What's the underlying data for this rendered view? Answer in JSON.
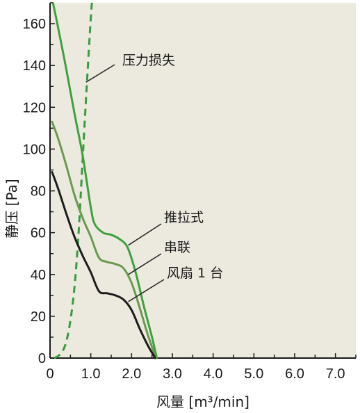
{
  "chart_data": {
    "type": "line",
    "xlabel": "风量 [m³/min]",
    "ylabel": "静压 [Pa]",
    "xlim": [
      0,
      7.5
    ],
    "ylim": [
      0,
      170
    ],
    "x_ticks": [
      "0",
      "1.0",
      "2.0",
      "3.0",
      "4.0",
      "5.0",
      "6.0",
      "7.0"
    ],
    "x_tick_values": [
      0,
      1,
      2,
      3,
      4,
      5,
      6,
      7
    ],
    "y_ticks": [
      "0",
      "20",
      "40",
      "60",
      "80",
      "100",
      "120",
      "140",
      "160"
    ],
    "y_tick_values": [
      0,
      20,
      40,
      60,
      80,
      100,
      120,
      140,
      160
    ],
    "plot_background": "#ece9df",
    "grid": false,
    "series": [
      {
        "name": "压力损失",
        "color": "#3a9a3e",
        "style": "dashed",
        "x": [
          0.1,
          0.2,
          0.3,
          0.4,
          0.5,
          0.6,
          0.7,
          0.8,
          0.9,
          1.0,
          1.05
        ],
        "y": [
          0,
          1,
          3,
          8,
          18,
          34,
          60,
          95,
          130,
          163,
          175
        ]
      },
      {
        "name": "推拉式",
        "color": "#3fa03f",
        "style": "solid",
        "x": [
          0.05,
          0.2,
          0.4,
          0.6,
          0.8,
          1.0,
          1.1,
          1.3,
          1.5,
          1.7,
          1.9,
          2.1,
          2.3,
          2.5,
          2.62
        ],
        "y": [
          172,
          158,
          138,
          117,
          97,
          72,
          64,
          60,
          59,
          57,
          53,
          41,
          25,
          10,
          0
        ]
      },
      {
        "name": "串联",
        "color": "#6a9a4e",
        "style": "solid",
        "x": [
          0.05,
          0.2,
          0.4,
          0.6,
          0.8,
          1.0,
          1.2,
          1.4,
          1.6,
          1.8,
          2.0,
          2.2,
          2.4,
          2.6
        ],
        "y": [
          113,
          105,
          92,
          78,
          67,
          58,
          48,
          46,
          45,
          43,
          36,
          24,
          11,
          0
        ]
      },
      {
        "name": "风扇 1 台",
        "color": "#1c1c1c",
        "style": "solid",
        "x": [
          0.05,
          0.2,
          0.4,
          0.6,
          0.8,
          1.0,
          1.2,
          1.4,
          1.6,
          1.8,
          2.0,
          2.2,
          2.4,
          2.58
        ],
        "y": [
          89,
          81,
          69,
          58,
          49,
          41,
          32,
          31,
          30,
          28,
          23,
          14,
          6,
          0
        ]
      }
    ],
    "annotations": [
      {
        "text": "压力损失",
        "series": 0,
        "point_x": 0.88,
        "point_y": 132
      },
      {
        "text": "推拉式",
        "series": 1,
        "point_x": 1.92,
        "point_y": 54
      },
      {
        "text": "串联",
        "series": 2,
        "point_x": 1.92,
        "point_y": 40
      },
      {
        "text": "风扇 1 台",
        "series": 3,
        "point_x": 1.92,
        "point_y": 27
      }
    ]
  }
}
